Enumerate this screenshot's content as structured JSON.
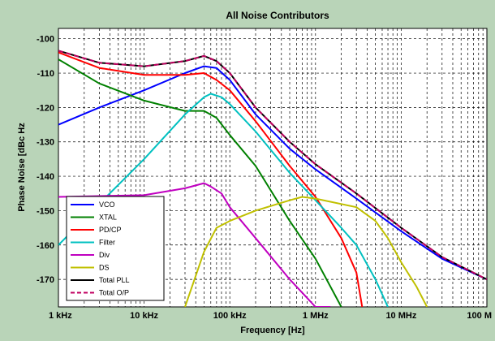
{
  "chart_data": {
    "type": "line",
    "title": "All Noise Contributors",
    "xlabel": "Frequency [Hz]",
    "ylabel": "Phase Noise [dBc Hz",
    "xscale": "log",
    "xlim": [
      1000,
      100000000
    ],
    "ylim": [
      -178,
      -97
    ],
    "xticks": [
      1000,
      10000,
      100000,
      1000000,
      10000000,
      100000000
    ],
    "xticklabels": [
      "1 kHz",
      "10 kHz",
      "100 kHz",
      "1 MHz",
      "10 MHz",
      "100 M"
    ],
    "yticks": [
      -100,
      -110,
      -120,
      -130,
      -140,
      -150,
      -160,
      -170
    ],
    "yticklabels": [
      "-100",
      "-110",
      "-120",
      "-130",
      "-140",
      "-150",
      "-160",
      "-170"
    ],
    "grid": true,
    "legend_position": "bottom-left",
    "series": [
      {
        "name": "VCO",
        "color": "#0000ff",
        "dash": "solid",
        "x": [
          1000,
          3000,
          10000,
          30000,
          50000,
          70000,
          100000,
          200000,
          500000,
          1000000,
          3000000,
          10000000,
          30000000,
          100000000
        ],
        "y": [
          -125,
          -120,
          -115,
          -110,
          -108,
          -108.5,
          -112,
          -122,
          -132,
          -138,
          -146.5,
          -156,
          -164,
          -170
        ]
      },
      {
        "name": "XTAL",
        "color": "#008000",
        "dash": "solid",
        "x": [
          1000,
          3000,
          10000,
          30000,
          50000,
          70000,
          100000,
          200000,
          500000,
          1000000,
          2000000
        ],
        "y": [
          -106,
          -113,
          -118,
          -121,
          -121,
          -123,
          -128,
          -137,
          -153,
          -164,
          -178
        ]
      },
      {
        "name": "PD/CP",
        "color": "#ff0000",
        "dash": "solid",
        "x": [
          1000,
          3000,
          10000,
          30000,
          50000,
          70000,
          100000,
          200000,
          500000,
          1000000,
          2000000,
          3000000,
          3500000
        ],
        "y": [
          -104,
          -108.5,
          -110.5,
          -110.5,
          -110,
          -112,
          -115,
          -124,
          -137,
          -146,
          -158,
          -168,
          -178
        ]
      },
      {
        "name": "Filter",
        "color": "#00c0c0",
        "dash": "solid",
        "x": [
          1000,
          3000,
          10000,
          30000,
          50000,
          60000,
          80000,
          100000,
          200000,
          500000,
          1000000,
          2000000,
          3000000,
          5000000,
          7000000
        ],
        "y": [
          -160,
          -148,
          -135,
          -122,
          -117,
          -116,
          -117,
          -119,
          -127,
          -139,
          -147,
          -155,
          -160,
          -170,
          -178
        ]
      },
      {
        "name": "Div",
        "color": "#c000c0",
        "dash": "solid",
        "x": [
          1000,
          10000,
          30000,
          50000,
          60000,
          80000,
          100000,
          200000,
          500000,
          1000000,
          1500000
        ],
        "y": [
          -146,
          -145.5,
          -143.5,
          -142,
          -143,
          -145,
          -149,
          -158,
          -170,
          -178,
          -178
        ]
      },
      {
        "name": "DS",
        "color": "#c0c000",
        "dash": "solid",
        "x": [
          30000,
          50000,
          70000,
          100000,
          200000,
          500000,
          700000,
          1000000,
          3000000,
          5000000,
          7000000,
          10000000,
          15000000,
          20000000
        ],
        "y": [
          -178,
          -162,
          -155,
          -153,
          -150,
          -147,
          -146,
          -146.5,
          -149,
          -153,
          -158,
          -165,
          -172,
          -178
        ]
      },
      {
        "name": "Total PLL",
        "color": "#000000",
        "dash": "solid",
        "x": [
          1000,
          3000,
          10000,
          30000,
          50000,
          70000,
          100000,
          200000,
          500000,
          1000000,
          3000000,
          10000000,
          30000000,
          100000000
        ],
        "y": [
          -103.5,
          -107,
          -108,
          -106.5,
          -105,
          -106.5,
          -110,
          -120,
          -130,
          -136.5,
          -145,
          -155,
          -163.5,
          -170
        ]
      },
      {
        "name": "Total O/P",
        "color": "#c00060",
        "dash": "dashed",
        "x": [
          1000,
          3000,
          10000,
          30000,
          50000,
          70000,
          100000,
          200000,
          500000,
          1000000,
          3000000,
          10000000,
          30000000,
          100000000
        ],
        "y": [
          -103.5,
          -107,
          -108,
          -106.5,
          -105,
          -106.5,
          -110,
          -120,
          -130,
          -136.5,
          -145,
          -155,
          -163.5,
          -170
        ]
      }
    ]
  }
}
